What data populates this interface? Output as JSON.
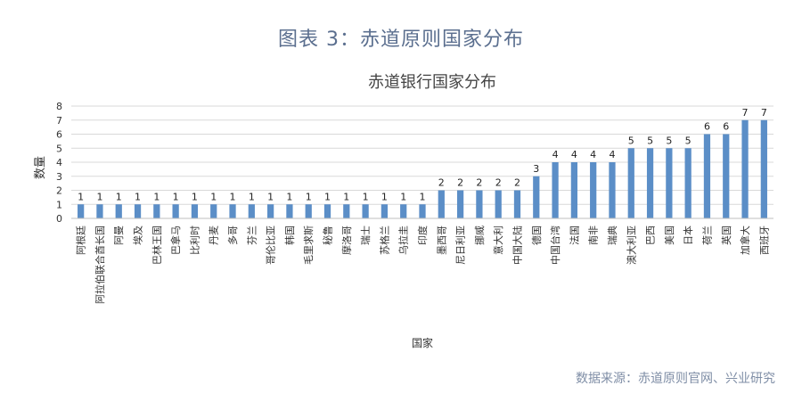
{
  "figure": {
    "title": "图表 3：赤道原则国家分布",
    "source": "数据来源：赤道原则官网、兴业研究"
  },
  "chart_data": {
    "type": "bar",
    "title": "赤道银行国家分布",
    "xlabel": "国家",
    "ylabel": "数量",
    "ylim": [
      0,
      8
    ],
    "yticks": [
      0,
      1,
      2,
      3,
      4,
      5,
      6,
      7,
      8
    ],
    "grid": true,
    "bar_color": "#5b8ec7",
    "categories": [
      "阿根廷",
      "阿拉伯联合酋长国",
      "阿曼",
      "埃及",
      "巴林王国",
      "巴拿马",
      "比利时",
      "丹麦",
      "多哥",
      "芬兰",
      "哥伦比亚",
      "韩国",
      "毛里求斯",
      "秘鲁",
      "摩洛哥",
      "瑞士",
      "苏格兰",
      "乌拉圭",
      "印度",
      "墨西哥",
      "尼日利亚",
      "挪威",
      "意大利",
      "中国大陆",
      "德国",
      "中国台湾",
      "法国",
      "南非",
      "瑞典",
      "澳大利亚",
      "巴西",
      "美国",
      "日本",
      "荷兰",
      "英国",
      "加拿大",
      "西班牙"
    ],
    "values": [
      1,
      1,
      1,
      1,
      1,
      1,
      1,
      1,
      1,
      1,
      1,
      1,
      1,
      1,
      1,
      1,
      1,
      1,
      1,
      2,
      2,
      2,
      2,
      2,
      3,
      4,
      4,
      4,
      4,
      5,
      5,
      5,
      5,
      6,
      6,
      7,
      7
    ]
  }
}
